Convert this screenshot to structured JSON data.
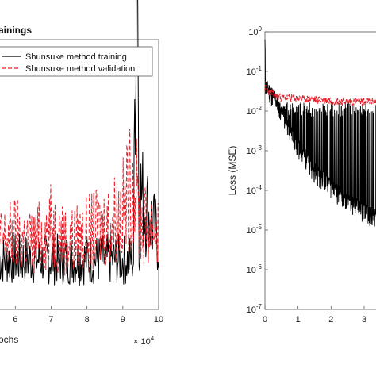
{
  "chart_data": [
    {
      "type": "line",
      "title": "ainings",
      "xlabel": "ochs",
      "ylabel": "",
      "x_multiplier": "× 10",
      "x_multiplier_exp": "4",
      "x_tick_labels": [
        "6",
        "7",
        "8",
        "9",
        "10"
      ],
      "xlim": [
        5.55,
        10
      ],
      "legend_position": "top",
      "series": [
        {
          "name": "Shunsuke method training",
          "color": "#000000",
          "style": "solid",
          "x": [
            5.55,
            6.0,
            6.5,
            7.0,
            7.5,
            8.0,
            8.5,
            9.0,
            9.3,
            9.4,
            9.45,
            9.5,
            10.0
          ],
          "y_level": [
            0.03,
            0.03,
            0.03,
            0.03,
            0.03,
            0.03,
            0.03,
            0.03,
            0.03,
            0.3,
            0.03,
            0.07,
            0.04
          ]
        },
        {
          "name": "Shunsuke method validation",
          "color": "#e8202a",
          "style": "dashed",
          "x": [
            5.55,
            6.0,
            6.5,
            7.0,
            7.5,
            8.0,
            8.5,
            9.0,
            9.3,
            9.5,
            10.0
          ],
          "y_level": [
            0.04,
            0.045,
            0.04,
            0.05,
            0.04,
            0.045,
            0.05,
            0.06,
            0.08,
            0.05,
            0.05
          ]
        }
      ]
    },
    {
      "type": "line",
      "title": "",
      "xlabel": "",
      "ylabel": "Loss (MSE)",
      "yscale": "log",
      "ylim": [
        1e-07,
        1
      ],
      "y_tick_base": "10",
      "y_tick_exponents": [
        "0",
        "-1",
        "-2",
        "-3",
        "-4",
        "-5",
        "-6",
        "-7"
      ],
      "x_tick_labels": [
        "0",
        "1",
        "2",
        "3"
      ],
      "xlim": [
        0,
        3.6
      ],
      "series": [
        {
          "color": "#000000",
          "style": "solid",
          "x": [
            0,
            0.02,
            0.3,
            0.6,
            1.0,
            1.5,
            2.0,
            2.5,
            3.0,
            3.3,
            3.6
          ],
          "y": [
            0.5,
            0.04,
            0.02,
            0.006,
            0.0012,
            0.0003,
            0.00012,
            5e-05,
            3e-05,
            2e-05,
            1.5e-05
          ],
          "spike_peak": 0.012
        },
        {
          "color": "#e8202a",
          "style": "dashed",
          "x": [
            0,
            0.1,
            0.3,
            0.6,
            1.0,
            1.5,
            2.0,
            2.5,
            3.0,
            3.6
          ],
          "y": [
            0.035,
            0.03,
            0.022,
            0.02,
            0.019,
            0.018,
            0.017,
            0.016,
            0.016,
            0.016
          ]
        }
      ]
    }
  ]
}
